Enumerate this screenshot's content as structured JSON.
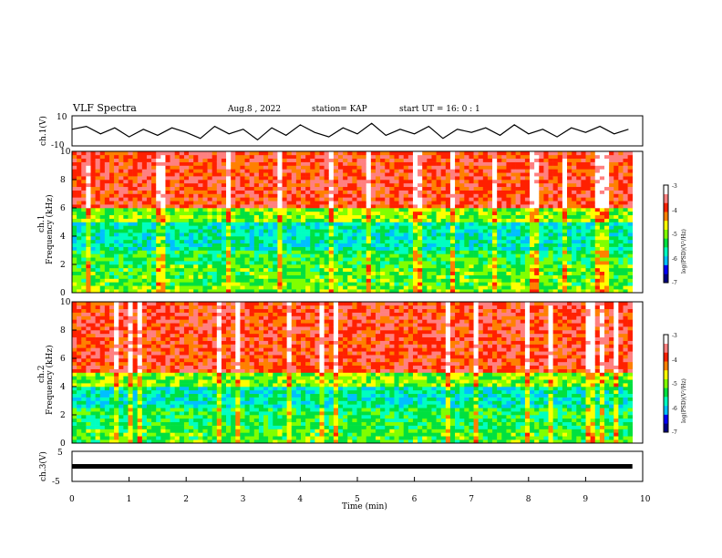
{
  "header": {
    "title": "VLF Spectra",
    "date": "Aug.8 , 2022",
    "station": "station= KAP",
    "start": "start UT = 16: 0 : 1"
  },
  "chart_data": [
    {
      "type": "line",
      "name": "ch1-waveform",
      "ylabel": "ch.1(V)",
      "ylim": [
        -10,
        10
      ],
      "yticks": [
        "10",
        "-10"
      ],
      "xlim": [
        0,
        10
      ],
      "x": [
        0.0,
        0.25,
        0.5,
        0.75,
        1.0,
        1.25,
        1.5,
        1.75,
        2.0,
        2.25,
        2.5,
        2.75,
        3.0,
        3.25,
        3.5,
        3.75,
        4.0,
        4.25,
        4.5,
        4.75,
        5.0,
        5.25,
        5.5,
        5.75,
        6.0,
        6.25,
        6.5,
        6.75,
        7.0,
        7.25,
        7.5,
        7.75,
        8.0,
        8.25,
        8.5,
        8.75,
        9.0,
        9.25,
        9.5,
        9.75
      ],
      "y": [
        1,
        3,
        -2,
        2,
        -4,
        1,
        -3,
        2,
        -1,
        -5,
        3,
        -2,
        1,
        -6,
        2,
        -3,
        4,
        -1,
        -4,
        2,
        -2,
        5,
        -3,
        1,
        -2,
        3,
        -5,
        1,
        -1,
        2,
        -3,
        4,
        -2,
        1,
        -4,
        2,
        -1,
        3,
        -2,
        1
      ]
    },
    {
      "type": "heatmap",
      "name": "ch1-spectrogram",
      "ylabel_top": "ch.1",
      "ylabel": "Frequency (kHz)",
      "ylim": [
        0,
        10
      ],
      "yticks": [
        "0",
        "2",
        "4",
        "6",
        "8",
        "10"
      ],
      "xlim": [
        0,
        10
      ],
      "colorbar": {
        "label": "log(PSD)(V²/Hz)",
        "range": [
          -7,
          -3
        ],
        "ticks": [
          "-3",
          "-4",
          "-5",
          "-6",
          "-7"
        ]
      },
      "band_profile": [
        {
          "f_from": 0,
          "f_to": 0.5,
          "level": -5.0
        },
        {
          "f_from": 0.5,
          "f_to": 2,
          "level": -5.2
        },
        {
          "f_from": 2,
          "f_to": 3,
          "level": -5.4
        },
        {
          "f_from": 3,
          "f_to": 5,
          "level": -5.8
        },
        {
          "f_from": 5,
          "f_to": 6,
          "level": -5.0
        },
        {
          "f_from": 6,
          "f_to": 10,
          "level": -3.8
        }
      ]
    },
    {
      "type": "heatmap",
      "name": "ch2-spectrogram",
      "ylabel_top": "ch.2",
      "ylabel": "Frequency (kHz)",
      "ylim": [
        0,
        10
      ],
      "yticks": [
        "0",
        "2",
        "4",
        "6",
        "8",
        "10"
      ],
      "xlim": [
        0,
        10
      ],
      "colorbar": {
        "label": "log(PSD)(V²/Hz)",
        "range": [
          -7,
          -3
        ],
        "ticks": [
          "-3",
          "-4",
          "-5",
          "-6",
          "-7"
        ]
      },
      "band_profile": [
        {
          "f_from": 0,
          "f_to": 1,
          "level": -5.2
        },
        {
          "f_from": 1,
          "f_to": 2.5,
          "level": -5.4
        },
        {
          "f_from": 2.5,
          "f_to": 4,
          "level": -5.8
        },
        {
          "f_from": 4,
          "f_to": 5,
          "level": -5.0
        },
        {
          "f_from": 5,
          "f_to": 10,
          "level": -3.8
        }
      ]
    },
    {
      "type": "line",
      "name": "ch3-waveform",
      "ylabel": "ch.3(V)",
      "ylim": [
        -5,
        5
      ],
      "yticks": [
        "5",
        "0",
        "-5"
      ],
      "xlim": [
        0,
        10
      ],
      "x": [
        0,
        9.82
      ],
      "y": [
        0,
        0
      ]
    }
  ],
  "xaxis": {
    "label": "Time (min)",
    "ticks": [
      "0",
      "1",
      "2",
      "3",
      "4",
      "5",
      "6",
      "7",
      "8",
      "9",
      "10"
    ]
  },
  "colors": {
    "line": "#000000",
    "colormap": [
      "#000080",
      "#0000ff",
      "#00bfff",
      "#00ffc0",
      "#00e040",
      "#80ff00",
      "#ffff00",
      "#ff8000",
      "#ff2000",
      "#ff8080",
      "#ffffff"
    ]
  }
}
